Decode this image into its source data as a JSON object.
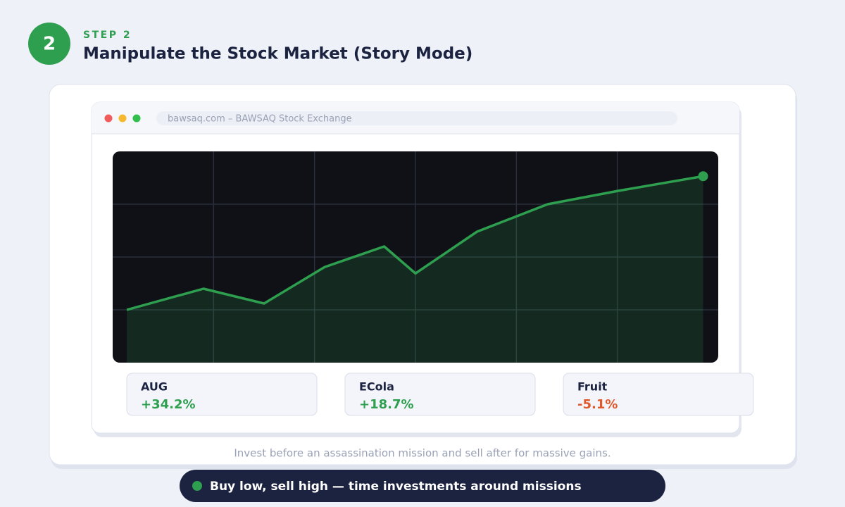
{
  "header": {
    "step_number": "2",
    "step_label": "STEP 2",
    "title": "Manipulate the Stock Market (Story Mode)"
  },
  "browser": {
    "url": "bawsaq.com – BAWSAQ Stock Exchange"
  },
  "chart_data": {
    "type": "line",
    "x": [
      0.14,
      0.9,
      1.5,
      2.1,
      2.69,
      3.0,
      3.61,
      4.31,
      5.0,
      5.85
    ],
    "series": [
      {
        "color": "#2e9e4f",
        "values": [
          1.0,
          1.4,
          1.12,
          1.81,
          2.2,
          1.69,
          2.48,
          3.0,
          3.25,
          3.53
        ]
      }
    ],
    "xlim": [
      0,
      6
    ],
    "ylim": [
      0,
      4
    ],
    "xticks": [
      1,
      2,
      3,
      4,
      5
    ],
    "yticks": [
      1,
      2,
      3
    ],
    "grid": true,
    "area": true
  },
  "stocks": [
    {
      "name": "AUG",
      "change": "+34.2%",
      "color": "#2e9e4f"
    },
    {
      "name": "ECola",
      "change": "+18.7%",
      "color": "#2e9e4f"
    },
    {
      "name": "Fruit",
      "change": "-5.1%",
      "color": "#e0592a"
    }
  ],
  "caption": "Invest before an assassination mission and sell after for massive gains.",
  "tip": "Buy low, sell high — time investments around missions"
}
